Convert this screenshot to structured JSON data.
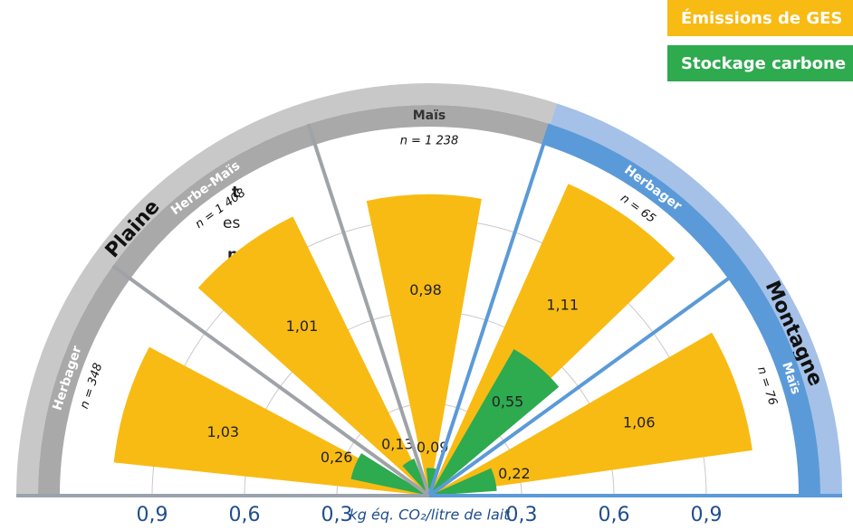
{
  "fragments": [
    "t",
    "es",
    "n"
  ],
  "chart_data": {
    "type": "polar_bar",
    "ylabel": "kg éq. CO₂/litre de lait",
    "groups": [
      {
        "name": "Plaine",
        "color": "#c8c8c8",
        "band_color": "#a9a9a9",
        "categories": [
          {
            "name": "Herbager",
            "n": "n = 348"
          },
          {
            "name": "Herbe-Maïs",
            "n": "n = 1 408"
          },
          {
            "name": "Maïs",
            "n": "n = 1 238"
          }
        ]
      },
      {
        "name": "Montagne",
        "color": "#a5c1e8",
        "band_color": "#5b9ad8",
        "categories": [
          {
            "name": "Herbager",
            "n": "n = 65"
          },
          {
            "name": "Maïs",
            "n": "n = 76"
          }
        ]
      }
    ],
    "series": [
      {
        "name": "Émissions de GES",
        "color": "#f8bb14",
        "values": [
          1.03,
          1.01,
          0.98,
          1.11,
          1.06
        ],
        "value_labels": [
          "1,03",
          "1,01",
          "0,98",
          "1,11",
          "1,06"
        ]
      },
      {
        "name": "Stockage carbone",
        "color": "#2eaa4f",
        "values": [
          0.26,
          0.13,
          0.09,
          0.55,
          0.22
        ],
        "value_labels": [
          "0,26",
          "0,13",
          "0,09",
          "0,55",
          "0,22"
        ]
      }
    ],
    "ylim": [
      0,
      1.2
    ],
    "yticks": [
      {
        "value": 0.3,
        "label": "0,3"
      },
      {
        "value": 0.6,
        "label": "0,6"
      },
      {
        "value": 0.9,
        "label": "0,9"
      }
    ],
    "grid": true
  }
}
